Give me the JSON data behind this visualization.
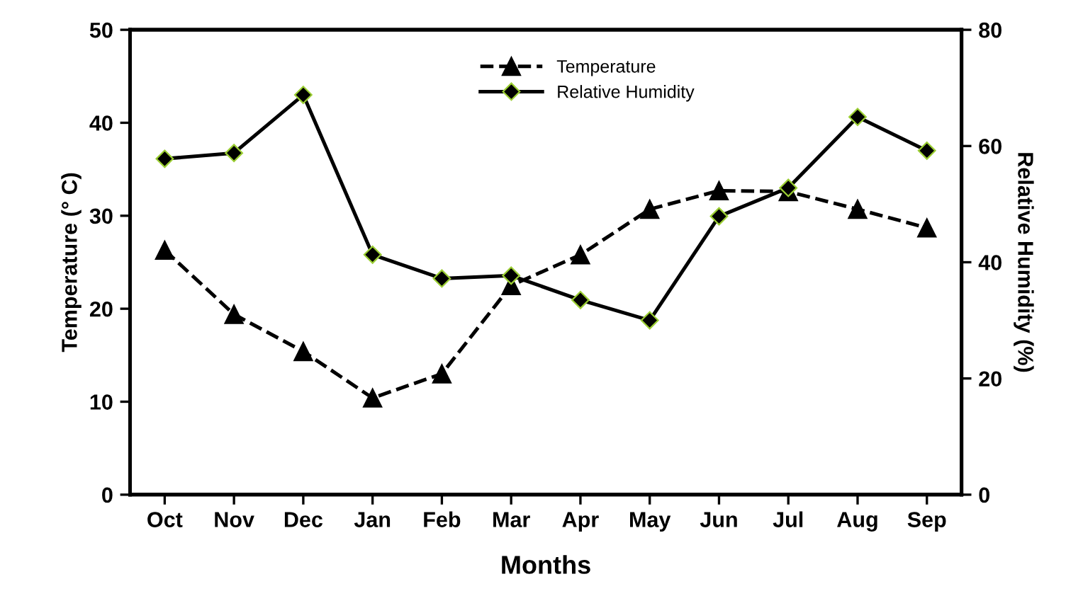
{
  "chart_data": {
    "type": "line",
    "xlabel": "Months",
    "ylabel": "Temperature (° C)",
    "y2label": "Relative Humidity (%)",
    "categories": [
      "Oct",
      "Nov",
      "Dec",
      "Jan",
      "Feb",
      "Mar",
      "Apr",
      "May",
      "Jun",
      "Jul",
      "Aug",
      "Sep"
    ],
    "series": [
      {
        "name": "Temperature",
        "color": "#000000",
        "marker": "triangle",
        "line_style": "dashed",
        "values": [
          26.3,
          19.4,
          15.4,
          10.4,
          13.0,
          22.5,
          25.8,
          30.7,
          32.7,
          32.6,
          30.7,
          28.7
        ]
      },
      {
        "name": "Relative Humidity",
        "color": "#000000",
        "marker": "diamond",
        "line_style": "solid",
        "axis": "y2",
        "values": [
          57.8,
          58.8,
          68.8,
          41.3,
          37.2,
          37.7,
          33.5,
          30.0,
          47.9,
          52.8,
          65.0,
          59.2
        ]
      }
    ],
    "ylim": [
      0,
      50
    ],
    "yticks": [
      0,
      10,
      20,
      30,
      40,
      50
    ],
    "y2lim": [
      0,
      80
    ],
    "y2ticks": [
      0,
      20,
      40,
      60,
      80
    ],
    "grid": false,
    "legend": "top center"
  }
}
